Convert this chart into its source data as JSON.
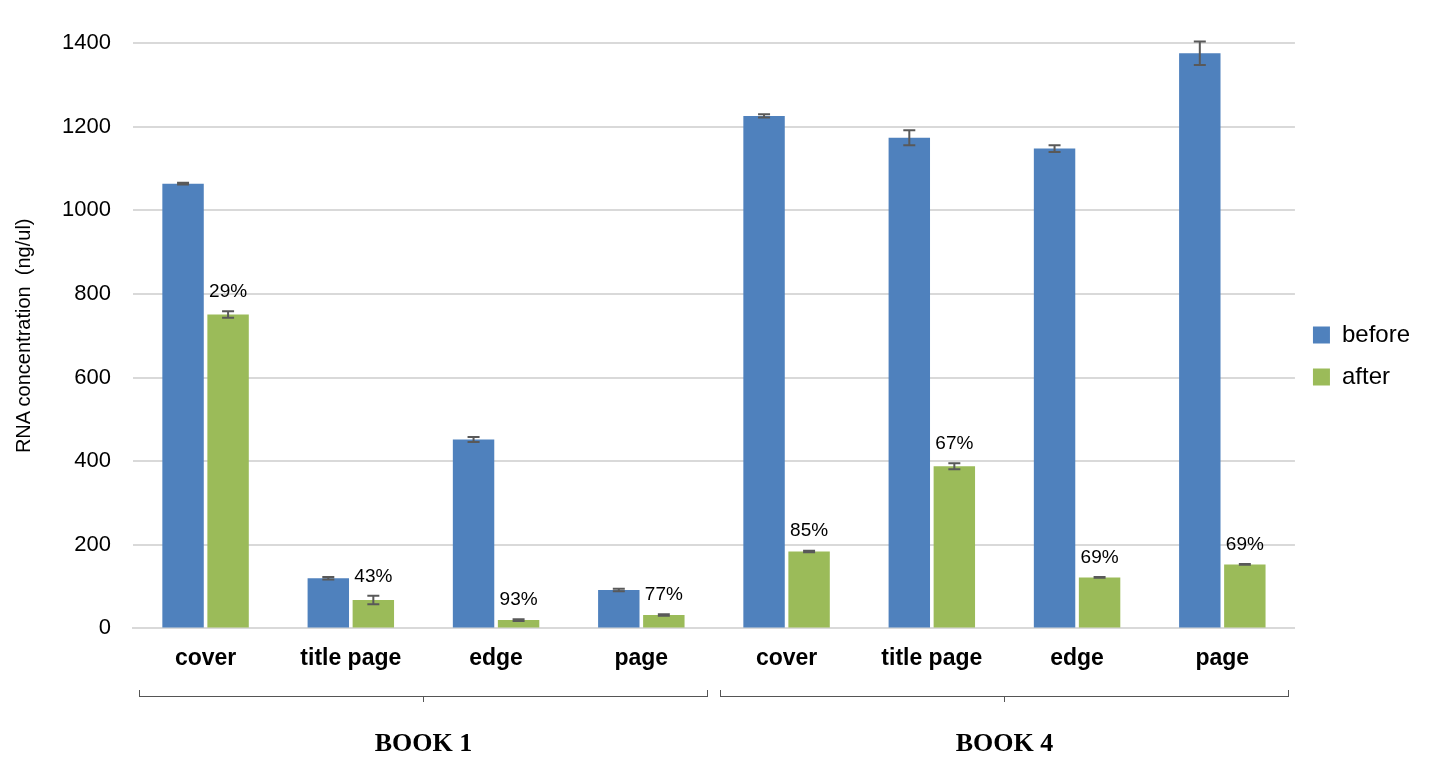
{
  "chart_data": {
    "type": "bar",
    "ylabel": "RNA concentration  (ng/ul)",
    "categories": [
      "cover",
      "title page",
      "edge",
      "page",
      "cover",
      "title page",
      "edge",
      "page"
    ],
    "series": [
      {
        "name": "before",
        "color": "#4f81bd",
        "values": [
          1064,
          120,
          452,
          92,
          1226,
          1174,
          1148,
          1376
        ],
        "errors": [
          2,
          3,
          6,
          3,
          4,
          18,
          8,
          28
        ]
      },
      {
        "name": "after",
        "color": "#9bbb59",
        "values": [
          751,
          68,
          20,
          32,
          184,
          388,
          122,
          153
        ],
        "errors": [
          8,
          10,
          2,
          2,
          2,
          7,
          1,
          1
        ]
      }
    ],
    "ylim": [
      0,
      1400
    ],
    "yticks": [
      0,
      200,
      400,
      600,
      800,
      1000,
      1200,
      1400
    ],
    "grid": "y",
    "legend": "right",
    "annotations": [
      "BOOK 1",
      "BOOK 4",
      {
        "text": "29%",
        "x": "cover",
        "y": 751
      },
      {
        "text": "43%",
        "x": "title page",
        "y": 68
      },
      {
        "text": "93%",
        "x": "edge",
        "y": 20
      },
      {
        "text": "77%",
        "x": "page",
        "y": 32
      },
      "85%",
      "67%",
      "69%",
      "69%"
    ]
  }
}
